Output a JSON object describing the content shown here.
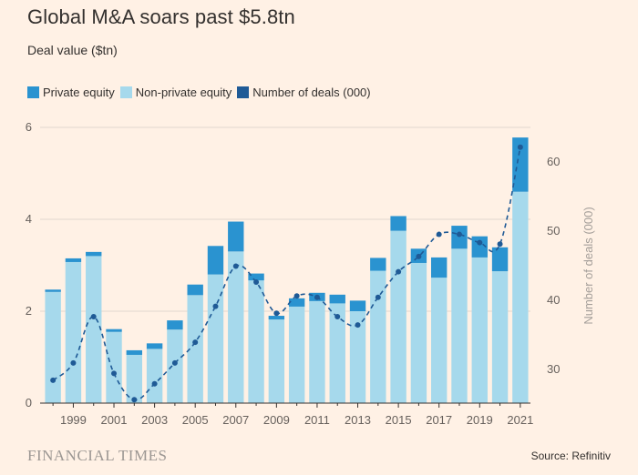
{
  "header": {
    "title": "Global M&A soars past $5.8tn",
    "subtitle": "Deal value ($tn)"
  },
  "legend": [
    {
      "label": "Private equity",
      "color": "#2a93d0"
    },
    {
      "label": "Non-private equity",
      "color": "#a6d9ec"
    },
    {
      "label": "Number of deals (000)",
      "color": "#1f5a96"
    }
  ],
  "footer": {
    "brand": "FINANCIAL TIMES",
    "source": "Source: Refinitiv"
  },
  "colors": {
    "background": "#fff1e5",
    "private_equity": "#2a93d0",
    "non_private_equity": "#a6d9ec",
    "deals_line": "#1f5a96"
  },
  "chart_data": {
    "type": "bar",
    "stacked": true,
    "categories": [
      "1998",
      "1999",
      "2000",
      "2001",
      "2002",
      "2003",
      "2004",
      "2005",
      "2006",
      "2007",
      "2008",
      "2009",
      "2010",
      "2011",
      "2012",
      "2013",
      "2014",
      "2015",
      "2016",
      "2017",
      "2018",
      "2019",
      "2020",
      "2021"
    ],
    "x_tick_labels": [
      "1999",
      "2001",
      "2003",
      "2005",
      "2007",
      "2009",
      "2011",
      "2013",
      "2015",
      "2017",
      "2019",
      "2021"
    ],
    "series": [
      {
        "name": "Non-private equity",
        "axis": "left",
        "values": [
          2.42,
          3.07,
          3.2,
          1.55,
          1.05,
          1.18,
          1.6,
          2.35,
          2.8,
          3.3,
          2.67,
          1.82,
          2.1,
          2.22,
          2.17,
          2.0,
          2.88,
          3.75,
          3.05,
          2.73,
          3.36,
          3.17,
          2.87,
          4.6
        ]
      },
      {
        "name": "Private equity",
        "axis": "left",
        "values": [
          0.05,
          0.08,
          0.09,
          0.06,
          0.1,
          0.12,
          0.2,
          0.23,
          0.62,
          0.65,
          0.15,
          0.08,
          0.18,
          0.18,
          0.19,
          0.23,
          0.28,
          0.32,
          0.31,
          0.44,
          0.5,
          0.46,
          0.52,
          1.18
        ]
      },
      {
        "name": "Number of deals (000)",
        "axis": "right",
        "type": "line",
        "style": "dashed",
        "values": [
          28.3,
          30.8,
          37.5,
          29.3,
          25.5,
          27.8,
          30.8,
          33.8,
          39.0,
          44.8,
          42.5,
          38.0,
          40.5,
          40.3,
          37.5,
          36.3,
          40.3,
          44.0,
          46.2,
          49.4,
          49.4,
          48.2,
          48.0,
          62.0
        ]
      }
    ],
    "ylabel": "",
    "ylim": [
      0,
      6
    ],
    "yticks": [
      0,
      2,
      4,
      6
    ],
    "y2label": "Number of deals (000)",
    "y2lim": [
      25,
      65
    ],
    "y2ticks": [
      30,
      40,
      50,
      60
    ],
    "grid": "horizontal"
  }
}
